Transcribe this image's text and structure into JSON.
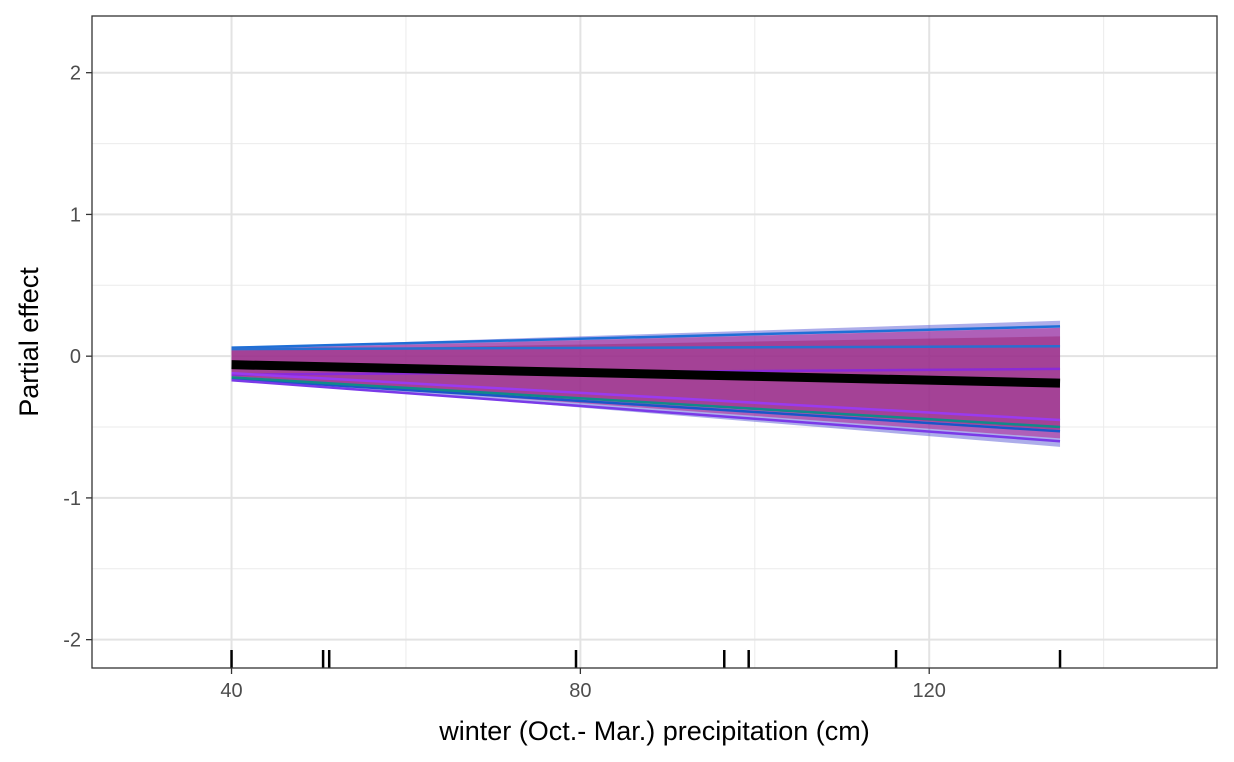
{
  "chart_data": {
    "type": "line",
    "title": "",
    "xlabel": "winter (Oct.- Mar.) precipitation (cm)",
    "ylabel": "Partial effect",
    "xlim": [
      24,
      153
    ],
    "ylim": [
      -2.2,
      2.4
    ],
    "x_ticks": [
      40,
      80,
      120
    ],
    "x_tick_labels": [
      "40",
      "80",
      "120"
    ],
    "y_ticks": [
      -2,
      -1,
      0,
      1,
      2
    ],
    "y_tick_labels": [
      "-2",
      "-1",
      "0",
      "1",
      "2"
    ],
    "grid": true,
    "theme": "bw",
    "x_range": [
      40,
      135
    ],
    "ribbons": [
      {
        "name": "band-1",
        "ymin": [
          -0.16,
          -0.64
        ],
        "ymax": [
          0.06,
          0.25
        ],
        "color": "#5b5bd6",
        "opacity": 0.5
      },
      {
        "name": "band-2",
        "ymin": [
          -0.15,
          -0.58
        ],
        "ymax": [
          0.05,
          0.2
        ],
        "color": "#b0208e",
        "opacity": 0.55
      },
      {
        "name": "band-3",
        "ymin": [
          -0.14,
          -0.52
        ],
        "ymax": [
          0.04,
          0.14
        ],
        "color": "#9a2a7a",
        "opacity": 0.55
      }
    ],
    "series": [
      {
        "values": [
          0.06,
          0.21
        ],
        "color": "#1f6fd6"
      },
      {
        "values": [
          0.05,
          0.07
        ],
        "color": "#2a6fd0"
      },
      {
        "values": [
          -0.13,
          -0.09
        ],
        "color": "#8a2ad8"
      },
      {
        "values": [
          -0.16,
          -0.53
        ],
        "color": "#1a56c8"
      },
      {
        "values": [
          -0.17,
          -0.6
        ],
        "color": "#7a3ae8"
      },
      {
        "values": [
          -0.15,
          -0.5
        ],
        "color": "#118a8a"
      },
      {
        "values": [
          -0.12,
          -0.45
        ],
        "color": "#9a3af0"
      },
      {
        "values": [
          -0.06,
          -0.19
        ],
        "color": "#000000",
        "width": 9
      }
    ],
    "rug_x": [
      40,
      50.5,
      51.2,
      79.5,
      96.5,
      99.3,
      116.2,
      135.0
    ]
  }
}
